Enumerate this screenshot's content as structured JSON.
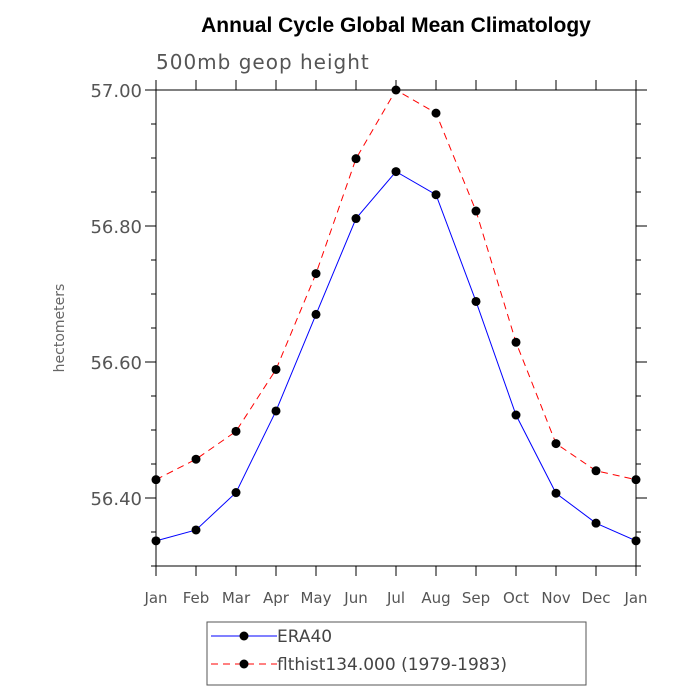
{
  "chart_data": {
    "type": "line",
    "title": "Annual Cycle Global Mean Climatology",
    "subtitle": "500mb geop height",
    "xlabel": "",
    "ylabel": "hectometers",
    "categories": [
      "Jan",
      "Feb",
      "Mar",
      "Apr",
      "May",
      "Jun",
      "Jul",
      "Aug",
      "Sep",
      "Oct",
      "Nov",
      "Dec",
      "Jan"
    ],
    "ylim": [
      56.3,
      57.0
    ],
    "y_major_ticks": [
      56.4,
      56.6,
      56.8,
      57.0
    ],
    "y_tick_labels": [
      "56.40",
      "56.60",
      "56.80",
      "57.00"
    ],
    "y_minor_step": 0.05,
    "grid": false,
    "legend_position": "bottom-center",
    "series": [
      {
        "name": "ERA40",
        "color": "#0000ff",
        "dash": "solid",
        "values": [
          56.337,
          56.353,
          56.408,
          56.528,
          56.67,
          56.811,
          56.88,
          56.846,
          56.689,
          56.522,
          56.407,
          56.363,
          56.337
        ]
      },
      {
        "name": "flthist134.000 (1979-1983)",
        "color": "#ff0000",
        "dash": "dashed",
        "values": [
          56.427,
          56.457,
          56.498,
          56.589,
          56.73,
          56.899,
          57.0,
          56.966,
          56.822,
          56.629,
          56.48,
          56.44,
          56.427
        ]
      }
    ]
  }
}
